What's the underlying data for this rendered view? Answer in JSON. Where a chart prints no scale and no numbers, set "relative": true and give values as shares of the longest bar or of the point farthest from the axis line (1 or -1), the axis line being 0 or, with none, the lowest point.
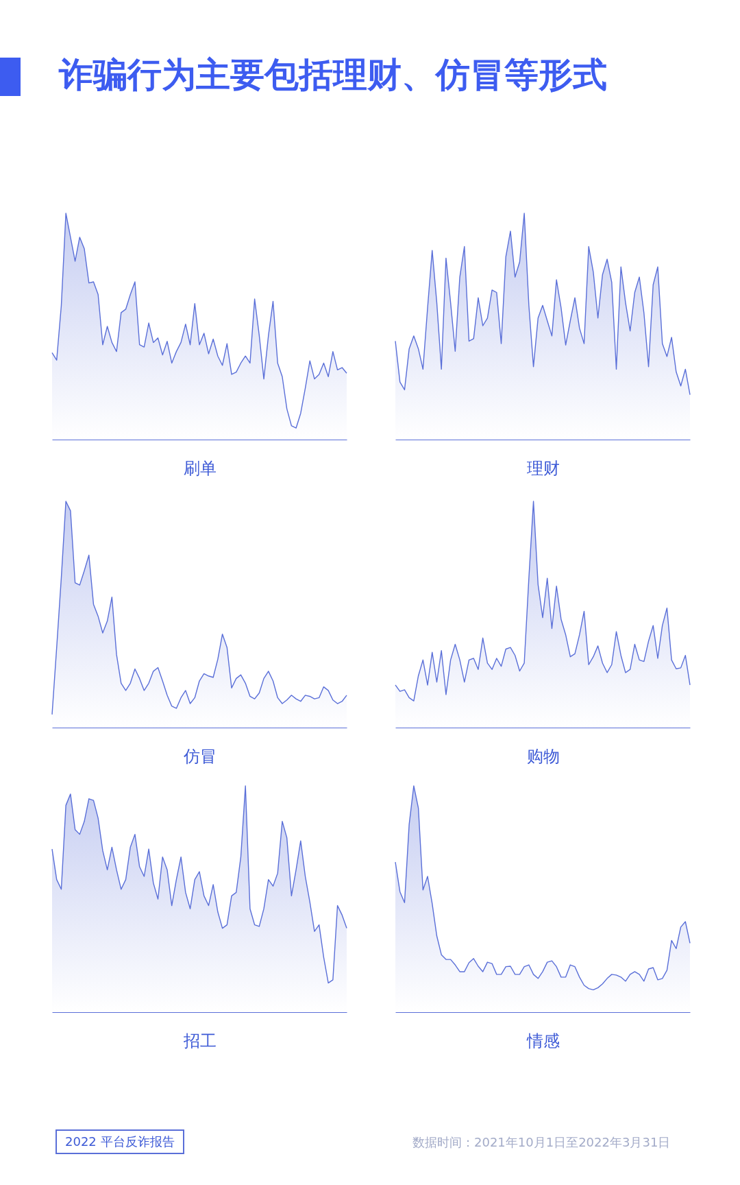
{
  "chart_data": [
    {
      "type": "other",
      "title": "诈骗行为主要包括理财、仿冒等形式"
    },
    {
      "type": "area",
      "relative": true,
      "xlabel": "刷单",
      "color": "#5a6fd8",
      "categories": [
        null,
        null,
        null,
        null,
        null,
        null,
        null,
        null,
        null,
        null,
        null,
        null,
        null,
        null,
        null,
        null,
        null,
        null,
        null,
        null,
        null,
        null,
        null,
        null,
        null,
        null,
        null,
        null,
        null,
        null,
        null,
        null,
        null,
        null,
        null,
        null,
        null,
        null,
        null,
        null,
        null,
        null,
        null,
        null,
        null,
        null,
        null,
        null,
        null,
        null,
        null,
        null,
        null,
        null,
        null,
        null,
        null,
        null,
        null,
        null,
        null,
        null,
        null,
        null,
        null
      ],
      "values": [
        0.384,
        0.351,
        0.591,
        1.0,
        0.894,
        0.788,
        0.894,
        0.843,
        0.692,
        0.697,
        0.641,
        0.419,
        0.5,
        0.429,
        0.389,
        0.561,
        0.576,
        0.641,
        0.697,
        0.419,
        0.409,
        0.515,
        0.429,
        0.449,
        0.374,
        0.434,
        0.338,
        0.389,
        0.429,
        0.51,
        0.419,
        0.601,
        0.419,
        0.47,
        0.379,
        0.444,
        0.369,
        0.328,
        0.424,
        0.288,
        0.298,
        0.338,
        0.369,
        0.338,
        0.621,
        0.46,
        0.268,
        0.46,
        0.611,
        0.338,
        0.278,
        0.136,
        0.061,
        0.051,
        0.116,
        0.227,
        0.348,
        0.268,
        0.288,
        0.338,
        0.278,
        0.389,
        0.308,
        0.318,
        0.293
      ]
    },
    {
      "type": "area",
      "relative": true,
      "xlabel": "理财",
      "color": "#5a6fd8",
      "categories": [
        null,
        null,
        null,
        null,
        null,
        null,
        null,
        null,
        null,
        null,
        null,
        null,
        null,
        null,
        null,
        null,
        null,
        null,
        null,
        null,
        null,
        null,
        null,
        null,
        null,
        null,
        null,
        null,
        null,
        null,
        null,
        null,
        null,
        null,
        null,
        null,
        null,
        null,
        null,
        null,
        null,
        null,
        null,
        null,
        null,
        null,
        null,
        null,
        null,
        null,
        null,
        null,
        null,
        null,
        null,
        null,
        null,
        null,
        null,
        null,
        null,
        null,
        null,
        null,
        null
      ],
      "values": [
        0.435,
        0.254,
        0.22,
        0.401,
        0.458,
        0.401,
        0.311,
        0.582,
        0.836,
        0.605,
        0.311,
        0.802,
        0.605,
        0.39,
        0.718,
        0.853,
        0.435,
        0.446,
        0.627,
        0.503,
        0.537,
        0.661,
        0.65,
        0.424,
        0.808,
        0.921,
        0.718,
        0.785,
        1.0,
        0.593,
        0.322,
        0.537,
        0.593,
        0.525,
        0.458,
        0.706,
        0.582,
        0.418,
        0.525,
        0.627,
        0.492,
        0.424,
        0.853,
        0.74,
        0.537,
        0.729,
        0.797,
        0.695,
        0.311,
        0.763,
        0.605,
        0.48,
        0.65,
        0.718,
        0.559,
        0.322,
        0.684,
        0.763,
        0.424,
        0.367,
        0.452,
        0.299,
        0.237,
        0.311,
        0.198
      ]
    },
    {
      "type": "area",
      "relative": true,
      "xlabel": "仿冒",
      "color": "#5a6fd8",
      "categories": [
        null,
        null,
        null,
        null,
        null,
        null,
        null,
        null,
        null,
        null,
        null,
        null,
        null,
        null,
        null,
        null,
        null,
        null,
        null,
        null,
        null,
        null,
        null,
        null,
        null,
        null,
        null,
        null,
        null,
        null,
        null,
        null,
        null,
        null,
        null,
        null,
        null,
        null,
        null,
        null,
        null,
        null,
        null,
        null,
        null,
        null,
        null,
        null,
        null,
        null,
        null,
        null,
        null,
        null,
        null,
        null,
        null,
        null,
        null,
        null,
        null,
        null,
        null,
        null,
        null
      ],
      "values": [
        0.058,
        0.354,
        0.661,
        1.0,
        0.958,
        0.64,
        0.63,
        0.693,
        0.762,
        0.545,
        0.492,
        0.418,
        0.471,
        0.577,
        0.323,
        0.196,
        0.164,
        0.196,
        0.259,
        0.217,
        0.164,
        0.196,
        0.249,
        0.265,
        0.206,
        0.143,
        0.095,
        0.085,
        0.132,
        0.164,
        0.106,
        0.132,
        0.206,
        0.238,
        0.228,
        0.222,
        0.302,
        0.413,
        0.354,
        0.175,
        0.217,
        0.233,
        0.196,
        0.138,
        0.127,
        0.153,
        0.217,
        0.249,
        0.206,
        0.132,
        0.106,
        0.122,
        0.143,
        0.127,
        0.116,
        0.143,
        0.138,
        0.127,
        0.132,
        0.18,
        0.164,
        0.122,
        0.106,
        0.116,
        0.143
      ]
    },
    {
      "type": "area",
      "relative": true,
      "xlabel": "购物",
      "color": "#5a6fd8",
      "categories": [
        null,
        null,
        null,
        null,
        null,
        null,
        null,
        null,
        null,
        null,
        null,
        null,
        null,
        null,
        null,
        null,
        null,
        null,
        null,
        null,
        null,
        null,
        null,
        null,
        null,
        null,
        null,
        null,
        null,
        null,
        null,
        null,
        null,
        null,
        null,
        null,
        null,
        null,
        null,
        null,
        null,
        null,
        null,
        null,
        null,
        null,
        null,
        null,
        null,
        null,
        null,
        null,
        null,
        null,
        null,
        null,
        null,
        null,
        null,
        null,
        null,
        null,
        null,
        null,
        null
      ],
      "values": [
        0.188,
        0.16,
        0.167,
        0.132,
        0.118,
        0.229,
        0.299,
        0.188,
        0.333,
        0.201,
        0.34,
        0.146,
        0.299,
        0.368,
        0.299,
        0.201,
        0.299,
        0.306,
        0.257,
        0.396,
        0.285,
        0.257,
        0.306,
        0.271,
        0.347,
        0.354,
        0.319,
        0.25,
        0.285,
        0.66,
        1.0,
        0.632,
        0.486,
        0.66,
        0.438,
        0.625,
        0.479,
        0.41,
        0.313,
        0.326,
        0.41,
        0.514,
        0.278,
        0.313,
        0.361,
        0.285,
        0.243,
        0.278,
        0.424,
        0.319,
        0.243,
        0.257,
        0.368,
        0.299,
        0.292,
        0.382,
        0.451,
        0.306,
        0.451,
        0.528,
        0.299,
        0.26,
        0.264,
        0.319,
        0.188
      ]
    },
    {
      "type": "area",
      "relative": true,
      "xlabel": "招工",
      "color": "#5a6fd8",
      "categories": [
        null,
        null,
        null,
        null,
        null,
        null,
        null,
        null,
        null,
        null,
        null,
        null,
        null,
        null,
        null,
        null,
        null,
        null,
        null,
        null,
        null,
        null,
        null,
        null,
        null,
        null,
        null,
        null,
        null,
        null,
        null,
        null,
        null,
        null,
        null,
        null,
        null,
        null,
        null,
        null,
        null,
        null,
        null,
        null,
        null,
        null,
        null,
        null,
        null,
        null,
        null,
        null,
        null,
        null,
        null,
        null,
        null,
        null,
        null,
        null,
        null,
        null,
        null,
        null,
        null
      ],
      "values": [
        0.721,
        0.586,
        0.543,
        0.914,
        0.964,
        0.807,
        0.786,
        0.843,
        0.943,
        0.936,
        0.857,
        0.714,
        0.629,
        0.729,
        0.629,
        0.543,
        0.586,
        0.729,
        0.786,
        0.643,
        0.6,
        0.721,
        0.571,
        0.5,
        0.686,
        0.629,
        0.471,
        0.586,
        0.686,
        0.529,
        0.457,
        0.586,
        0.621,
        0.514,
        0.471,
        0.564,
        0.443,
        0.371,
        0.386,
        0.514,
        0.529,
        0.686,
        1.0,
        0.457,
        0.386,
        0.379,
        0.457,
        0.586,
        0.557,
        0.614,
        0.843,
        0.771,
        0.514,
        0.629,
        0.757,
        0.6,
        0.486,
        0.357,
        0.386,
        0.243,
        0.129,
        0.143,
        0.471,
        0.429,
        0.371
      ]
    },
    {
      "type": "area",
      "relative": true,
      "xlabel": "情感",
      "color": "#5a6fd8",
      "categories": [
        null,
        null,
        null,
        null,
        null,
        null,
        null,
        null,
        null,
        null,
        null,
        null,
        null,
        null,
        null,
        null,
        null,
        null,
        null,
        null,
        null,
        null,
        null,
        null,
        null,
        null,
        null,
        null,
        null,
        null,
        null,
        null,
        null,
        null,
        null,
        null,
        null,
        null,
        null,
        null,
        null,
        null,
        null,
        null,
        null,
        null,
        null,
        null,
        null,
        null,
        null,
        null,
        null,
        null,
        null,
        null,
        null,
        null,
        null,
        null,
        null,
        null,
        null,
        null,
        null
      ],
      "values": [
        0.663,
        0.532,
        0.484,
        0.83,
        1.0,
        0.902,
        0.54,
        0.6,
        0.48,
        0.337,
        0.254,
        0.233,
        0.233,
        0.209,
        0.179,
        0.179,
        0.219,
        0.237,
        0.203,
        0.179,
        0.221,
        0.215,
        0.167,
        0.167,
        0.201,
        0.203,
        0.167,
        0.167,
        0.201,
        0.209,
        0.167,
        0.149,
        0.179,
        0.221,
        0.227,
        0.201,
        0.155,
        0.155,
        0.209,
        0.201,
        0.155,
        0.119,
        0.104,
        0.099,
        0.108,
        0.125,
        0.149,
        0.167,
        0.164,
        0.155,
        0.137,
        0.167,
        0.179,
        0.167,
        0.137,
        0.191,
        0.197,
        0.143,
        0.149,
        0.185,
        0.317,
        0.281,
        0.376,
        0.4,
        0.305
      ]
    },
    {
      "type": "other",
      "annotations": [
        "2022 平台反诈报告",
        "数据时间：2021年10月1日至2022年3月31日"
      ]
    }
  ]
}
